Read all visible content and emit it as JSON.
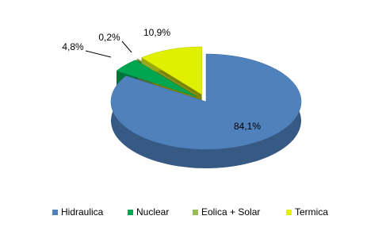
{
  "chart_data": {
    "type": "pie",
    "categories": [
      "Hidraulica",
      "Nuclear",
      "Eolica + Solar",
      "Termica"
    ],
    "values": [
      84.1,
      4.8,
      0.2,
      10.9
    ],
    "value_labels": [
      "84,1%",
      "4,8%",
      "0,2%",
      "10,9%"
    ],
    "colors": [
      "#4f81bd",
      "#00a651",
      "#9bbb59",
      "#e0f000"
    ],
    "legend": "bottom"
  }
}
